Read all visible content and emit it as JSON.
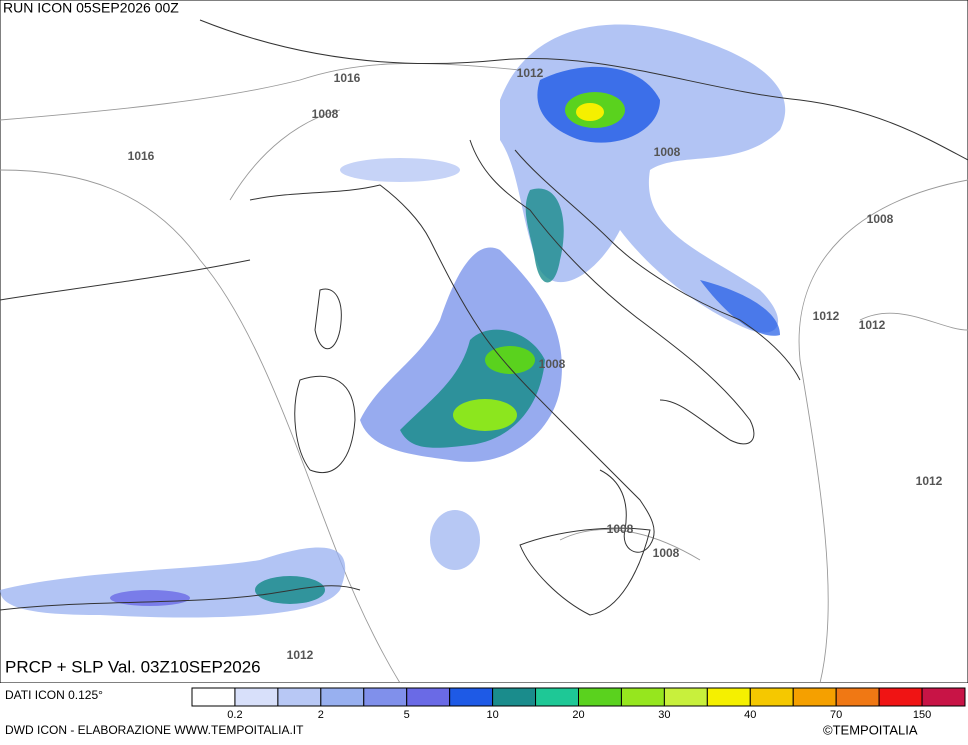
{
  "header": {
    "title": "RUN ICON 05SEP2026 00Z"
  },
  "map": {
    "isobar_labels": [
      "1016",
      "1016",
      "1008",
      "1012",
      "1008",
      "1008",
      "1012",
      "1012",
      "1008",
      "1012",
      "1008",
      "1008",
      "1012"
    ]
  },
  "footer": {
    "product": "PRCP + SLP Val. 03Z10SEP2026",
    "data_source": "DATI ICON 0.125°",
    "credits": "DWD ICON - ELABORAZIONE WWW.TEMPOITALIA.IT",
    "copyright": "©TEMPOITALIA"
  },
  "legend": {
    "colors": [
      "#ffffff",
      "#d8e0fa",
      "#b8c8f5",
      "#98b0f0",
      "#8090eb",
      "#6a6ae6",
      "#1e5ae6",
      "#1a8c8c",
      "#1ec896",
      "#5ad21e",
      "#96e61e",
      "#c8f03c",
      "#f5f000",
      "#f5c800",
      "#f5a000",
      "#f07814",
      "#f01414",
      "#c81446"
    ],
    "labels": [
      "0.2",
      "2",
      "5",
      "10",
      "20",
      "30",
      "40",
      "70",
      "150"
    ]
  }
}
